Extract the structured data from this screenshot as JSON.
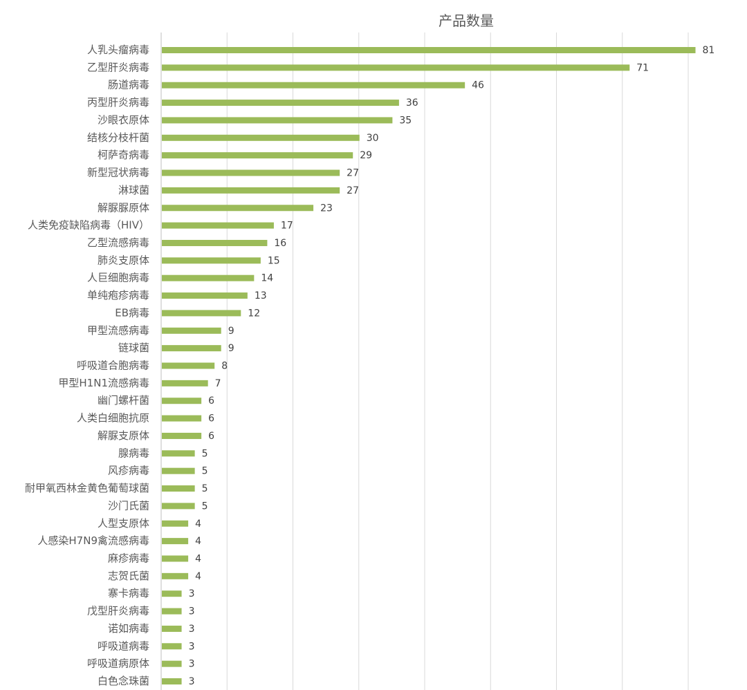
{
  "chart_data": {
    "type": "bar",
    "orientation": "horizontal",
    "title": "产品数量",
    "xlabel": "",
    "ylabel": "",
    "xlim": [
      0,
      80
    ],
    "grid": true,
    "legend": "none",
    "bar_color": "#9BBB59",
    "categories": [
      "人乳头瘤病毒",
      "乙型肝炎病毒",
      "肠道病毒",
      "丙型肝炎病毒",
      "沙眼衣原体",
      "结核分枝杆菌",
      "柯萨奇病毒",
      "新型冠状病毒",
      "淋球菌",
      "解脲脲原体",
      "人类免疫缺陷病毒（HIV）",
      "乙型流感病毒",
      "肺炎支原体",
      "人巨细胞病毒",
      "单纯疱疹病毒",
      "EB病毒",
      "甲型流感病毒",
      "链球菌",
      "呼吸道合胞病毒",
      "甲型H1N1流感病毒",
      "幽门螺杆菌",
      "人类白细胞抗原",
      "解脲支原体",
      "腺病毒",
      "风疹病毒",
      "耐甲氧西林金黄色葡萄球菌",
      "沙门氏菌",
      "人型支原体",
      "人感染H7N9禽流感病毒",
      "麻疹病毒",
      "志贺氏菌",
      "寨卡病毒",
      "戊型肝炎病毒",
      "诺如病毒",
      "呼吸道病毒",
      "呼吸道病原体",
      "白色念珠菌"
    ],
    "values": [
      81,
      71,
      46,
      36,
      35,
      30,
      29,
      27,
      27,
      23,
      17,
      16,
      15,
      14,
      13,
      12,
      9,
      9,
      8,
      7,
      6,
      6,
      6,
      5,
      5,
      5,
      5,
      4,
      4,
      4,
      4,
      3,
      3,
      3,
      3,
      3,
      3
    ]
  }
}
